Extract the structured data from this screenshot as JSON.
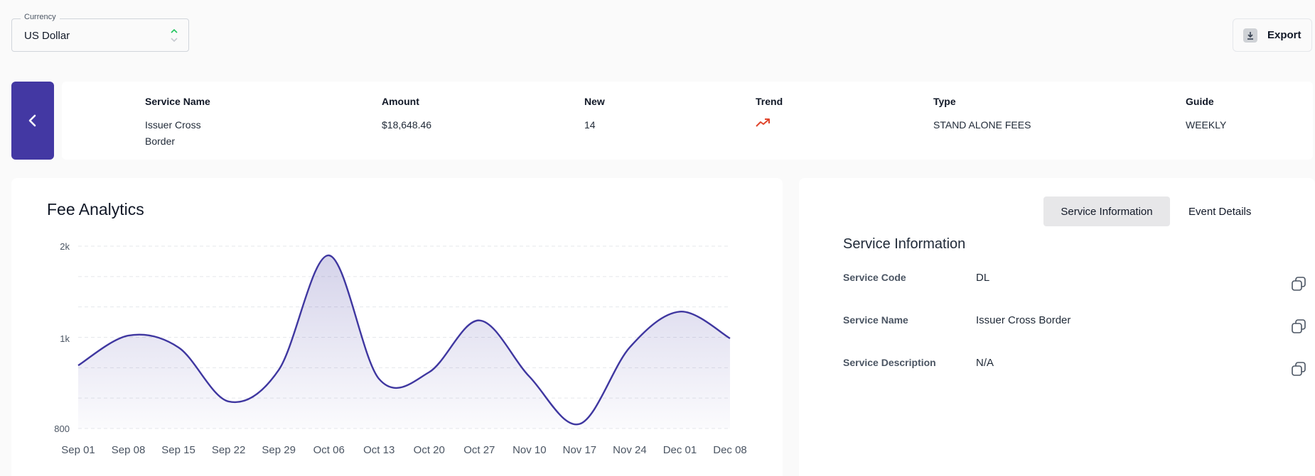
{
  "currency": {
    "label": "Currency",
    "value": "US Dollar"
  },
  "toolbar": {
    "export_label": "Export"
  },
  "summary": {
    "columns": [
      {
        "header": "Service Name",
        "value": "Issuer Cross Border"
      },
      {
        "header": "Amount",
        "value": "$18,648.46"
      },
      {
        "header": "New",
        "value": "14"
      },
      {
        "header": "Trend",
        "value": "up",
        "icon": "trending-up-icon",
        "color": "#e0452c"
      },
      {
        "header": "Type",
        "value": "STAND ALONE FEES"
      },
      {
        "header": "Guide",
        "value": "WEEKLY"
      }
    ]
  },
  "chart": {
    "title": "Fee Analytics"
  },
  "chart_data": {
    "type": "area",
    "title": "Fee Analytics",
    "categories": [
      "Sep 01",
      "Sep 08",
      "Sep 15",
      "Sep 22",
      "Sep 29",
      "Oct 06",
      "Oct 13",
      "Oct 20",
      "Oct 27",
      "Nov 10",
      "Nov 17",
      "Nov 24",
      "Dec 01",
      "Dec 08"
    ],
    "series": [
      {
        "values": [
          940,
          1030,
          980,
          860,
          930,
          1900,
          910,
          925,
          1195,
          915,
          810,
          980,
          1290,
          1000
        ],
        "color": "#3f37a0"
      }
    ],
    "y_ticks": [
      "2k",
      "1k",
      "800"
    ],
    "grid": true
  },
  "tabs": [
    {
      "label": "Service Information",
      "active": true
    },
    {
      "label": "Event Details",
      "active": false
    }
  ],
  "service_info": {
    "title": "Service Information",
    "rows": [
      {
        "label": "Service Code",
        "value": "DL"
      },
      {
        "label": "Service Name",
        "value": "Issuer Cross Border"
      },
      {
        "label": "Service Description",
        "value": "N/A"
      }
    ]
  },
  "colors": {
    "accent": "#4338a3",
    "trend_up": "#e0452c",
    "select_up_arrow": "#22c55e"
  }
}
